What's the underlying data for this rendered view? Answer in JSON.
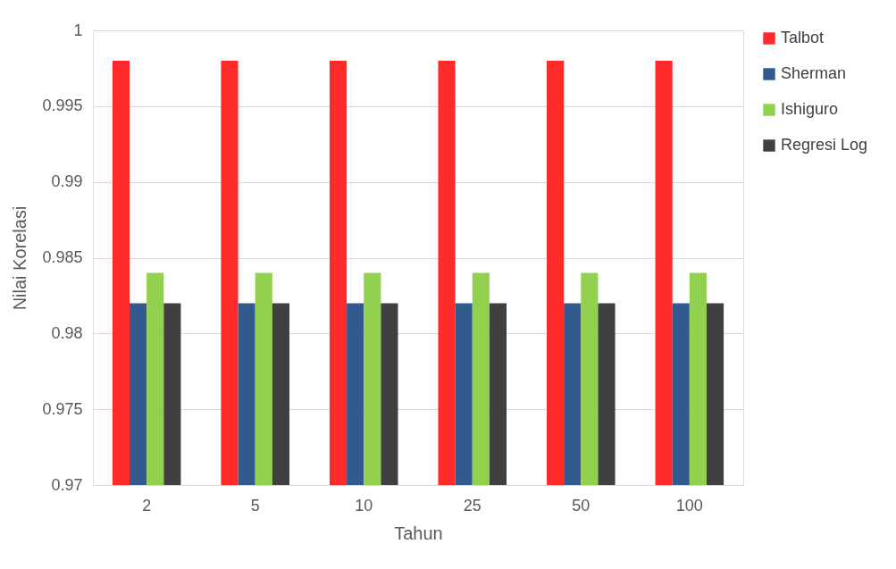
{
  "chart_data": {
    "type": "bar",
    "xlabel": "Tahun",
    "ylabel": "Nilai Korelasi",
    "categories": [
      "2",
      "5",
      "10",
      "25",
      "50",
      "100"
    ],
    "series": [
      {
        "name": "Talbot",
        "color": "#ff2a2a",
        "values": [
          0.998,
          0.998,
          0.998,
          0.998,
          0.998,
          0.998
        ]
      },
      {
        "name": "Sherman",
        "color": "#335a8e",
        "values": [
          0.982,
          0.982,
          0.982,
          0.982,
          0.982,
          0.982
        ]
      },
      {
        "name": "Ishiguro",
        "color": "#92d050",
        "values": [
          0.984,
          0.984,
          0.984,
          0.984,
          0.984,
          0.984
        ]
      },
      {
        "name": "Regresi Log",
        "color": "#404040",
        "values": [
          0.982,
          0.982,
          0.982,
          0.982,
          0.982,
          0.982
        ]
      }
    ],
    "ylim": [
      0.97,
      1
    ],
    "yticks": [
      0.97,
      0.975,
      0.98,
      0.985,
      0.99,
      0.995,
      1
    ],
    "grid": "y",
    "legend": "right"
  }
}
